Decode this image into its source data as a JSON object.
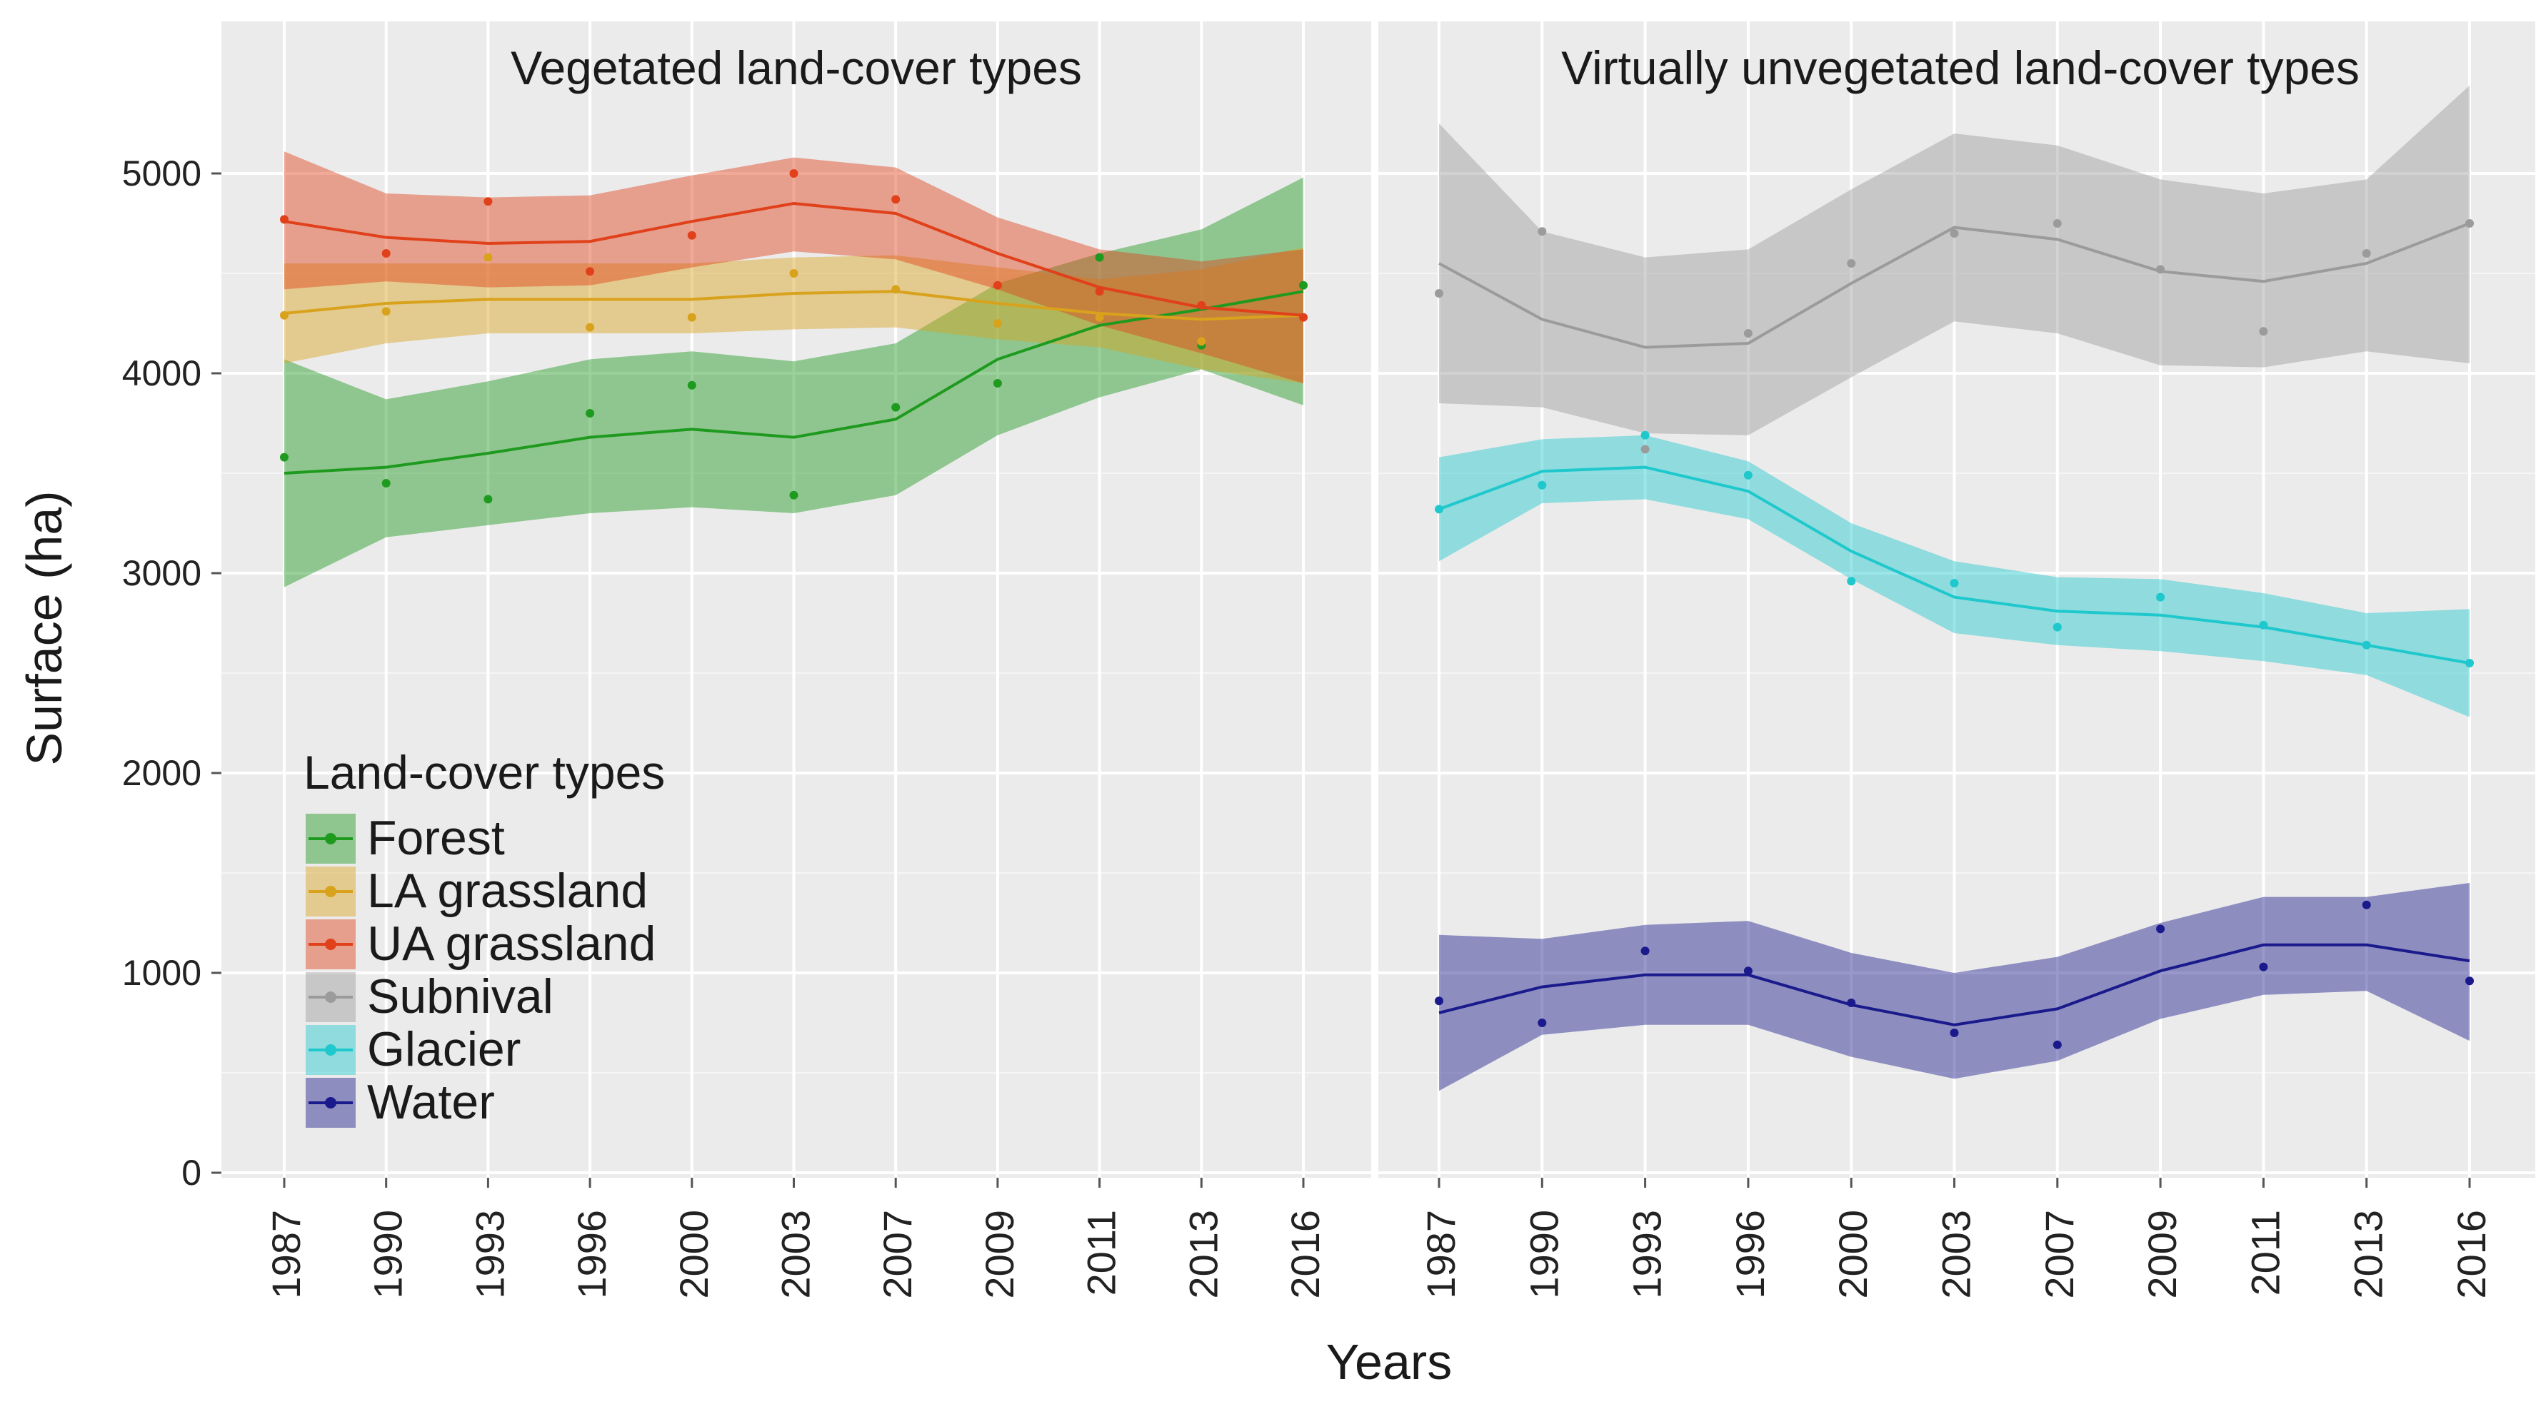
{
  "chart_data": {
    "type": "line",
    "ylabel": "Surface (ha)",
    "xlabel": "Years",
    "ylim": [
      0,
      5500
    ],
    "yticks": [
      0,
      1000,
      2000,
      3000,
      4000,
      5000
    ],
    "categories": [
      "1987",
      "1990",
      "1993",
      "1996",
      "2000",
      "2003",
      "2007",
      "2009",
      "2011",
      "2013",
      "2016"
    ],
    "legend": {
      "title": "Land-cover types",
      "position": "bottom-left of left panel",
      "entries": [
        "Forest",
        "LA grassland",
        "UA grassland",
        "Subnival",
        "Glacier",
        "Water"
      ]
    },
    "colors": {
      "Forest": "#1e9a1e",
      "LA grassland": "#d9a21c",
      "UA grassland": "#e0401a",
      "Subnival": "#9b9b9b",
      "Glacier": "#1ec8cc",
      "Water": "#1a1a8c"
    },
    "panels": [
      {
        "title": "Vegetated land-cover types",
        "series": [
          {
            "name": "Forest",
            "points": [
              3580,
              3450,
              3370,
              3800,
              3940,
              3390,
              3830,
              3950,
              4580,
              4140,
              4440
            ],
            "trend": [
              3500,
              3530,
              3600,
              3680,
              3720,
              3680,
              3770,
              4070,
              4240,
              4320,
              4410
            ],
            "lower": [
              2930,
              3180,
              3240,
              3300,
              3330,
              3300,
              3390,
              3690,
              3880,
              4020,
              3840
            ],
            "upper": [
              4070,
              3870,
              3960,
              4070,
              4110,
              4060,
              4150,
              4450,
              4600,
              4720,
              4980
            ]
          },
          {
            "name": "LA grassland",
            "points": [
              4290,
              4310,
              4580,
              4230,
              4280,
              4500,
              4420,
              4250,
              4280,
              4160,
              4280
            ],
            "trend": [
              4300,
              4350,
              4370,
              4370,
              4370,
              4400,
              4410,
              4350,
              4300,
              4270,
              4290
            ],
            "lower": [
              4050,
              4150,
              4200,
              4200,
              4200,
              4220,
              4230,
              4170,
              4130,
              4020,
              3950
            ],
            "upper": [
              4550,
              4550,
              4550,
              4550,
              4550,
              4580,
              4590,
              4530,
              4470,
              4520,
              4630
            ]
          },
          {
            "name": "UA grassland",
            "points": [
              4770,
              4600,
              4860,
              4510,
              4690,
              5000,
              4870,
              4440,
              4410,
              4340,
              4280
            ],
            "trend": [
              4760,
              4680,
              4650,
              4660,
              4760,
              4850,
              4800,
              4600,
              4430,
              4330,
              4290
            ],
            "lower": [
              4420,
              4460,
              4430,
              4440,
              4530,
              4610,
              4570,
              4420,
              4240,
              4100,
              3950
            ],
            "upper": [
              5110,
              4900,
              4880,
              4890,
              4990,
              5080,
              5030,
              4780,
              4620,
              4560,
              4620
            ]
          }
        ]
      },
      {
        "title": "Virtually unvegetated land-cover types",
        "series": [
          {
            "name": "Subnival",
            "points": [
              4400,
              4710,
              3620,
              4200,
              4550,
              4700,
              4750,
              4520,
              4210,
              4600,
              4750
            ],
            "trend": [
              4550,
              4270,
              4130,
              4150,
              4450,
              4730,
              4670,
              4510,
              4460,
              4550,
              4750
            ],
            "lower": [
              3850,
              3830,
              3700,
              3690,
              3980,
              4260,
              4200,
              4040,
              4030,
              4110,
              4050
            ],
            "upper": [
              5250,
              4710,
              4580,
              4620,
              4920,
              5200,
              5140,
              4970,
              4900,
              4970,
              5440
            ]
          },
          {
            "name": "Glacier",
            "points": [
              3320,
              3440,
              3690,
              3490,
              2960,
              2950,
              2730,
              2880,
              2740,
              2640,
              2550
            ],
            "trend": [
              3320,
              3510,
              3530,
              3410,
              3110,
              2880,
              2810,
              2790,
              2730,
              2640,
              2550
            ],
            "lower": [
              3060,
              3350,
              3370,
              3270,
              2970,
              2700,
              2640,
              2610,
              2560,
              2490,
              2280
            ],
            "upper": [
              3580,
              3670,
              3690,
              3560,
              3250,
              3060,
              2980,
              2970,
              2900,
              2800,
              2820
            ]
          },
          {
            "name": "Water",
            "points": [
              860,
              750,
              1110,
              1010,
              850,
              700,
              640,
              1220,
              1030,
              1340,
              960
            ],
            "trend": [
              800,
              930,
              990,
              990,
              840,
              740,
              820,
              1010,
              1140,
              1140,
              1060
            ],
            "lower": [
              410,
              690,
              740,
              740,
              580,
              470,
              560,
              770,
              890,
              910,
              660
            ],
            "upper": [
              1190,
              1170,
              1240,
              1260,
              1100,
              1000,
              1080,
              1250,
              1380,
              1380,
              1450
            ]
          }
        ]
      }
    ]
  }
}
